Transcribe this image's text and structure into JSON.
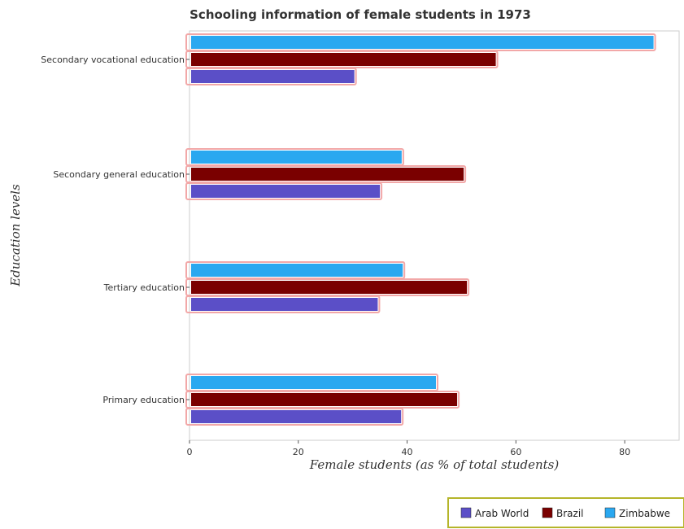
{
  "chart_data": {
    "type": "bar",
    "orientation": "horizontal",
    "title": "Schooling information of female students in 1973",
    "xlabel": "Female students (as % of total students)",
    "ylabel": "Education levels",
    "xlim": [
      0,
      90
    ],
    "xticks": [
      0,
      20,
      40,
      60,
      80
    ],
    "categories": [
      "Primary education",
      "Tertiary education",
      "Secondary general education",
      "Secondary vocational education"
    ],
    "series": [
      {
        "name": "Arab World",
        "color": "#5b4fc7",
        "values": [
          38.9,
          34.6,
          35.0,
          30.3
        ]
      },
      {
        "name": "Brazil",
        "color": "#7a0000",
        "values": [
          49.2,
          51.0,
          50.4,
          56.3
        ]
      },
      {
        "name": "Zimbabwe",
        "color": "#2aa8f0",
        "values": [
          45.3,
          39.2,
          39.0,
          85.3
        ]
      }
    ],
    "grid": false,
    "legend_position": "bottom-right"
  }
}
